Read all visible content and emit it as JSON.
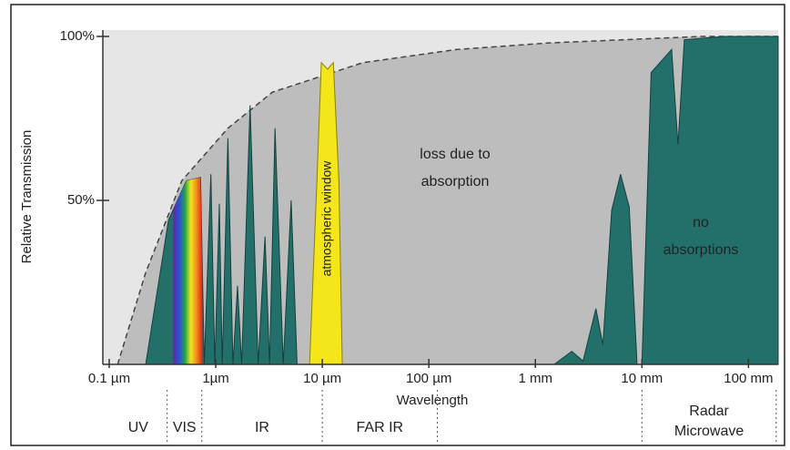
{
  "chart_data": {
    "type": "area",
    "ylabel": "Relative Transmission",
    "xlabel": "Wavelength",
    "xscale": "log",
    "xlim": [
      0.1,
      190000
    ],
    "xticks": [
      {
        "value": 0.1,
        "label": "0.1 µm"
      },
      {
        "value": 1,
        "label": "1µm"
      },
      {
        "value": 10,
        "label": "10 µm"
      },
      {
        "value": 100,
        "label": "100 µm"
      },
      {
        "value": 1000,
        "label": "1 mm"
      },
      {
        "value": 10000,
        "label": "10 mm"
      },
      {
        "value": 100000,
        "label": "100 mm"
      }
    ],
    "ylim": [
      0,
      100
    ],
    "yticks": [
      {
        "value": 50,
        "label": "50%"
      },
      {
        "value": 100,
        "label": "100%"
      }
    ],
    "transmission": {
      "color": "#23706b",
      "x": [
        0.22,
        0.36,
        0.53,
        0.72,
        0.78,
        0.9,
        0.98,
        1.08,
        1.15,
        1.3,
        1.45,
        1.6,
        1.75,
        2.1,
        2.5,
        2.9,
        3.2,
        3.6,
        4.3,
        5.1,
        5.8,
        1500,
        2200,
        2800,
        3700,
        4300,
        5200,
        6300,
        7600,
        9000,
        10000,
        12200,
        19000,
        21800,
        25000,
        60000,
        190000
      ],
      "values": [
        0,
        44,
        56,
        57,
        0,
        58,
        0,
        49,
        0,
        69,
        0,
        24,
        0,
        79,
        0,
        39,
        0,
        72,
        0,
        50,
        0,
        0,
        4,
        1,
        17,
        6,
        47,
        58,
        48,
        0,
        0,
        89,
        96,
        67,
        99,
        100,
        100
      ]
    },
    "visible_range": [
      0.4,
      0.75
    ],
    "window": {
      "color": "#f5e61a",
      "x": [
        7.6,
        8.9,
        9.8,
        11.2,
        12.7,
        14.3,
        15.4
      ],
      "values": [
        0,
        56,
        92,
        90,
        92,
        56,
        0
      ]
    },
    "envelope": {
      "color": "#bdbdbd",
      "x": [
        0.12,
        0.22,
        0.48,
        1.3,
        3.4,
        24,
        180,
        1300,
        36000,
        190000
      ],
      "values": [
        0,
        28,
        56,
        72,
        83,
        92,
        96,
        98,
        100,
        100
      ]
    },
    "annotations": {
      "loss": [
        "loss due to",
        "absorption"
      ],
      "none": [
        "no",
        "absorptions"
      ],
      "window": "atmospheric window"
    },
    "bands": [
      {
        "label": [
          "UV"
        ],
        "range": [
          0.1,
          0.35
        ]
      },
      {
        "label": [
          "VIS"
        ],
        "range": [
          0.35,
          0.74
        ]
      },
      {
        "label": [
          "IR"
        ],
        "range": [
          0.74,
          10
        ]
      },
      {
        "label": [
          "FAR IR"
        ],
        "range": [
          10,
          120
        ]
      },
      {
        "label": [
          "Radar",
          "Microwave"
        ],
        "range": [
          10000,
          182000
        ]
      }
    ]
  }
}
